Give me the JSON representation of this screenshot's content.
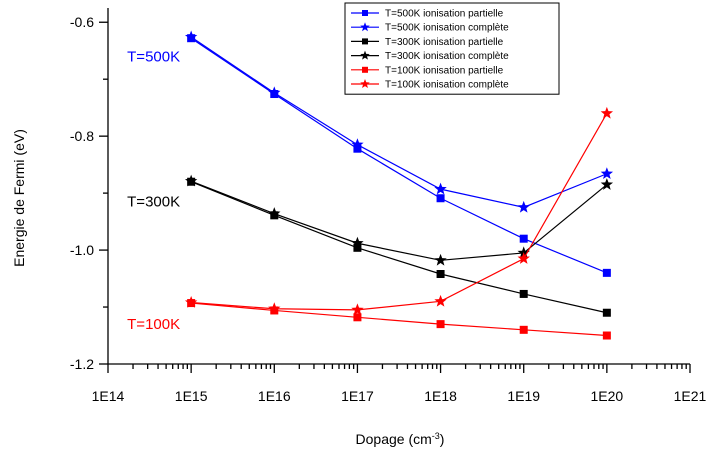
{
  "chart_data": {
    "type": "line",
    "xlabel": "Dopage (cm",
    "xlabel_sup": "-3",
    "xlabel_end": ")",
    "ylabel": "Energie de Fermi (eV)",
    "x_scale": "log",
    "xlim": [
      100000000000000.0,
      1e+21
    ],
    "ylim": [
      -1.2,
      -0.575
    ],
    "x_ticks": [
      {
        "value": 100000000000000.0,
        "label": "1E14"
      },
      {
        "value": 1000000000000000.0,
        "label": "1E15"
      },
      {
        "value": 1e+16,
        "label": "1E16"
      },
      {
        "value": 1e+17,
        "label": "1E17"
      },
      {
        "value": 1e+18,
        "label": "1E18"
      },
      {
        "value": 1e+19,
        "label": "1E19"
      },
      {
        "value": 1e+20,
        "label": "1E20"
      },
      {
        "value": 1e+21,
        "label": "1E21"
      }
    ],
    "y_ticks": [
      {
        "value": -1.2,
        "label": "-1.2"
      },
      {
        "value": -1.0,
        "label": "-1.0"
      },
      {
        "value": -0.8,
        "label": "-0.8"
      },
      {
        "value": -0.6,
        "label": "-0.6"
      }
    ],
    "x": [
      1000000000000000.0,
      1e+16,
      1e+17,
      1e+18,
      1e+19,
      1e+20
    ],
    "series": [
      {
        "name": "T=500K ionisation partielle",
        "color": "#0000ff",
        "marker": "square",
        "values": [
          -0.628,
          -0.726,
          -0.822,
          -0.909,
          -0.98,
          -1.04
        ]
      },
      {
        "name": "T=500K ionisation complète",
        "color": "#0000ff",
        "marker": "star",
        "values": [
          -0.626,
          -0.724,
          -0.815,
          -0.893,
          -0.925,
          -0.866
        ]
      },
      {
        "name": "T=300K ionisation partielle",
        "color": "#000000",
        "marker": "square",
        "values": [
          -0.88,
          -0.939,
          -0.996,
          -1.042,
          -1.077,
          -1.11
        ]
      },
      {
        "name": "T=300K ionisation complète",
        "color": "#000000",
        "marker": "star",
        "values": [
          -0.879,
          -0.936,
          -0.988,
          -1.018,
          -1.005,
          -0.885
        ]
      },
      {
        "name": "T=100K ionisation partielle",
        "color": "#ff0000",
        "marker": "square",
        "values": [
          -1.093,
          -1.106,
          -1.118,
          -1.13,
          -1.14,
          -1.15
        ]
      },
      {
        "name": "T=100K ionisation complète",
        "color": "#ff0000",
        "marker": "star",
        "values": [
          -1.092,
          -1.103,
          -1.105,
          -1.09,
          -1.015,
          -0.76
        ]
      }
    ],
    "annotations": [
      {
        "text": "T=500K",
        "color": "#0000ff",
        "x": 1000000000000000.0,
        "y": -0.66
      },
      {
        "text": "T=300K",
        "color": "#000000",
        "x": 1000000000000000.0,
        "y": -0.915
      },
      {
        "text": "T=100K",
        "color": "#ff0000",
        "x": 1000000000000000.0,
        "y": -1.13
      }
    ],
    "grid": false,
    "legend_position": "top-right"
  }
}
